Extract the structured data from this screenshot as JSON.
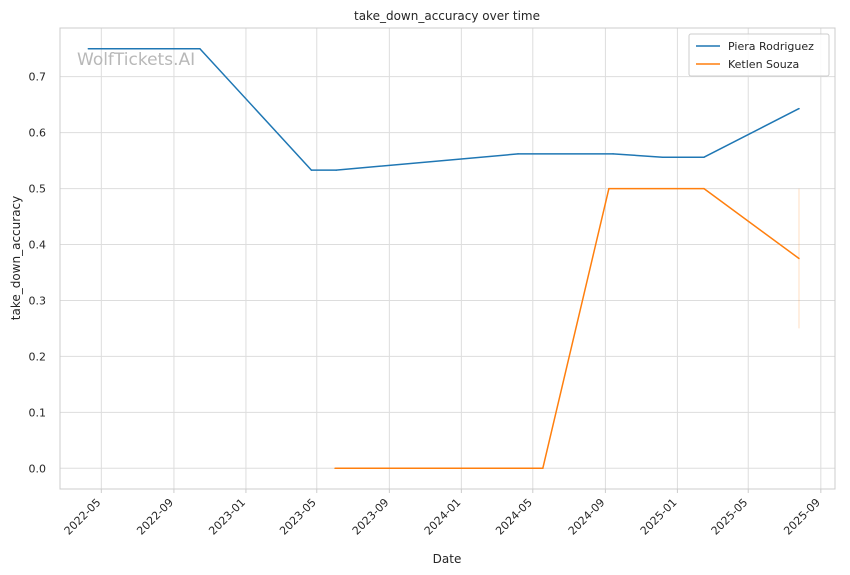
{
  "chart_data": {
    "type": "line",
    "title": "take_down_accuracy over time",
    "xlabel": "Date",
    "ylabel": "take_down_accuracy",
    "watermark": "WolfTickets.AI",
    "x_ticks": [
      "2022-05",
      "2022-09",
      "2023-01",
      "2023-05",
      "2023-09",
      "2024-01",
      "2024-05",
      "2024-09",
      "2025-01",
      "2025-05",
      "2025-09"
    ],
    "y_ticks": [
      "0.0",
      "0.1",
      "0.2",
      "0.3",
      "0.4",
      "0.5",
      "0.6",
      "0.7"
    ],
    "xlim": [
      "2022-02-20",
      "2025-09-25"
    ],
    "ylim": [
      -0.037,
      0.787
    ],
    "grid": true,
    "legend_position": "top-right",
    "series": [
      {
        "name": "Piera Rodriguez",
        "color": "#1f77b4",
        "points": [
          {
            "x": "2022-04-09",
            "y": 0.75
          },
          {
            "x": "2022-10-15",
            "y": 0.75
          },
          {
            "x": "2023-04-22",
            "y": 0.533
          },
          {
            "x": "2023-06-03",
            "y": 0.533
          },
          {
            "x": "2024-04-06",
            "y": 0.562
          },
          {
            "x": "2024-09-14",
            "y": 0.562
          },
          {
            "x": "2024-12-07",
            "y": 0.556
          },
          {
            "x": "2025-02-15",
            "y": 0.556
          },
          {
            "x": "2025-07-26",
            "y": 0.643
          }
        ]
      },
      {
        "name": "Ketlen Souza",
        "color": "#ff7f0e",
        "points": [
          {
            "x": "2023-06-01",
            "y": 0.0
          },
          {
            "x": "2024-05-18",
            "y": 0.0
          },
          {
            "x": "2024-09-07",
            "y": 0.5
          },
          {
            "x": "2025-02-15",
            "y": 0.5
          },
          {
            "x": "2025-07-26",
            "y": 0.375
          }
        ]
      }
    ],
    "error_band": {
      "x": "2025-07-26",
      "y_low": 0.25,
      "y_high": 0.5,
      "color": "#ff7f0e"
    }
  }
}
